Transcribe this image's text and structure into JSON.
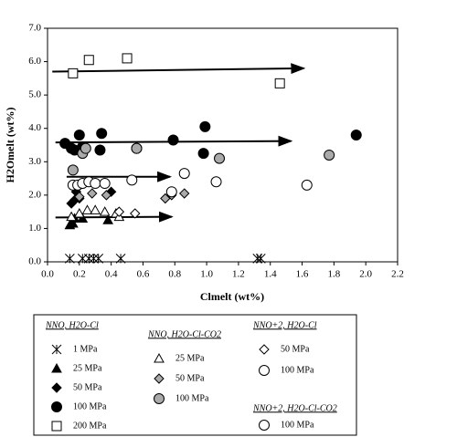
{
  "chart_data": {
    "type": "scatter",
    "x_label": "Clmelt (wt%)",
    "y_label": "H2Omelt (wt%)",
    "xlim": [
      0,
      2.2
    ],
    "ylim": [
      0,
      7
    ],
    "xticks": [
      {
        "value": 0,
        "label": "0.0"
      },
      {
        "value": 0.2,
        "label": "0.2"
      },
      {
        "value": 0.4,
        "label": "0.4"
      },
      {
        "value": 0.6,
        "label": "0.6"
      },
      {
        "value": 0.8,
        "label": "0.8"
      },
      {
        "value": 1,
        "label": "1.0"
      },
      {
        "value": 1.2,
        "label": "1.2"
      },
      {
        "value": 1.4,
        "label": "1.4"
      },
      {
        "value": 1.6,
        "label": "1.6"
      },
      {
        "value": 1.8,
        "label": "1.8"
      },
      {
        "value": 2,
        "label": "2.0"
      },
      {
        "value": 2.2,
        "label": "2.2"
      }
    ],
    "yticks": [
      {
        "value": 0,
        "label": "0.0"
      },
      {
        "value": 1,
        "label": "1.0"
      },
      {
        "value": 2,
        "label": "2.0"
      },
      {
        "value": 3,
        "label": "3.0"
      },
      {
        "value": 4,
        "label": "4.0"
      },
      {
        "value": 5,
        "label": "5.0"
      },
      {
        "value": 6,
        "label": "6.0"
      },
      {
        "value": 7,
        "label": "7.0"
      }
    ],
    "groups": [
      "NNO, H2O-Cl",
      "NNO, H2O-Cl-CO2",
      "NNO+2, H2O-Cl",
      "NNO+2, H2O-Cl-CO2"
    ],
    "series": [
      {
        "name": "1 MPa",
        "group": 0,
        "marker": "x",
        "color": "#000000",
        "x": [
          0.14,
          0.22,
          0.26,
          0.29,
          0.32,
          0.46,
          1.32,
          1.34
        ],
        "values": [
          0.1,
          0.1,
          0.1,
          0.1,
          0.1,
          0.1,
          0.1,
          0.1
        ]
      },
      {
        "name": "25 MPa",
        "group": 0,
        "marker": "triangle",
        "color": "#000000",
        "x": [
          0.14,
          0.16,
          0.17,
          0.22,
          0.38
        ],
        "values": [
          1.1,
          1.15,
          1.3,
          1.3,
          1.25
        ]
      },
      {
        "name": "50 MPa",
        "group": 0,
        "marker": "diamond",
        "color": "#000000",
        "x": [
          0.15,
          0.17,
          0.2,
          0.18,
          0.4
        ],
        "values": [
          1.75,
          1.85,
          1.9,
          2.1,
          2.1
        ]
      },
      {
        "name": "100 MPa",
        "group": 0,
        "marker": "circle",
        "color": "#000000",
        "x": [
          0.11,
          0.15,
          0.2,
          0.22,
          0.17,
          0.33,
          0.34,
          0.56,
          0.79,
          0.98,
          0.99,
          1.94
        ],
        "values": [
          3.55,
          3.4,
          3.8,
          3.45,
          3.35,
          3.35,
          3.85,
          3.4,
          3.65,
          3.25,
          4.05,
          3.8
        ]
      },
      {
        "name": "200 MPa",
        "group": 0,
        "marker": "square",
        "color": "#ffffff",
        "x": [
          0.16,
          0.26,
          0.5,
          1.46
        ],
        "values": [
          5.65,
          6.05,
          6.1,
          5.35
        ]
      },
      {
        "name": "25 MPa",
        "group": 1,
        "marker": "triangle",
        "color": "#ffffff",
        "x": [
          0.15,
          0.2,
          0.25,
          0.3,
          0.36,
          0.43,
          0.45
        ],
        "values": [
          1.35,
          1.45,
          1.55,
          1.55,
          1.5,
          1.45,
          1.35
        ]
      },
      {
        "name": "50 MPa",
        "group": 1,
        "marker": "diamond",
        "color": "#aaaaaa",
        "x": [
          0.2,
          0.28,
          0.37,
          0.74,
          0.78,
          0.86
        ],
        "values": [
          1.95,
          2.05,
          2.0,
          1.9,
          2.0,
          2.05
        ]
      },
      {
        "name": "100 MPa",
        "group": 1,
        "marker": "circle",
        "color": "#aaaaaa",
        "x": [
          0.16,
          0.22,
          0.24,
          0.56,
          1.08,
          1.77
        ],
        "values": [
          2.75,
          3.25,
          3.4,
          3.4,
          3.1,
          3.2
        ]
      },
      {
        "name": "50 MPa",
        "group": 2,
        "marker": "diamond",
        "color": "#ffffff",
        "x": [
          0.45,
          0.55
        ],
        "values": [
          1.5,
          1.45
        ]
      },
      {
        "name": "100 MPa",
        "group": 2,
        "marker": "circle",
        "color": "#ffffff",
        "x": [
          0.16,
          0.19,
          0.22,
          0.26,
          0.3,
          0.36,
          0.53,
          0.78,
          0.86,
          1.06,
          1.63
        ],
        "values": [
          2.3,
          2.3,
          2.35,
          2.4,
          2.35,
          2.35,
          2.45,
          2.1,
          2.65,
          2.4,
          2.3
        ]
      },
      {
        "name": "100 MPa",
        "group": 3,
        "marker": "circle",
        "color": "#ffffff",
        "x": [],
        "values": []
      }
    ],
    "arrows": [
      {
        "x": [
          0.03,
          1.61
        ],
        "values": [
          5.7,
          5.8
        ]
      },
      {
        "x": [
          0.05,
          1.53
        ],
        "values": [
          3.58,
          3.62
        ]
      },
      {
        "x": [
          0.12,
          0.77
        ],
        "values": [
          2.55,
          2.55
        ]
      },
      {
        "x": [
          0.05,
          0.78
        ],
        "values": [
          1.33,
          1.35
        ]
      }
    ]
  }
}
